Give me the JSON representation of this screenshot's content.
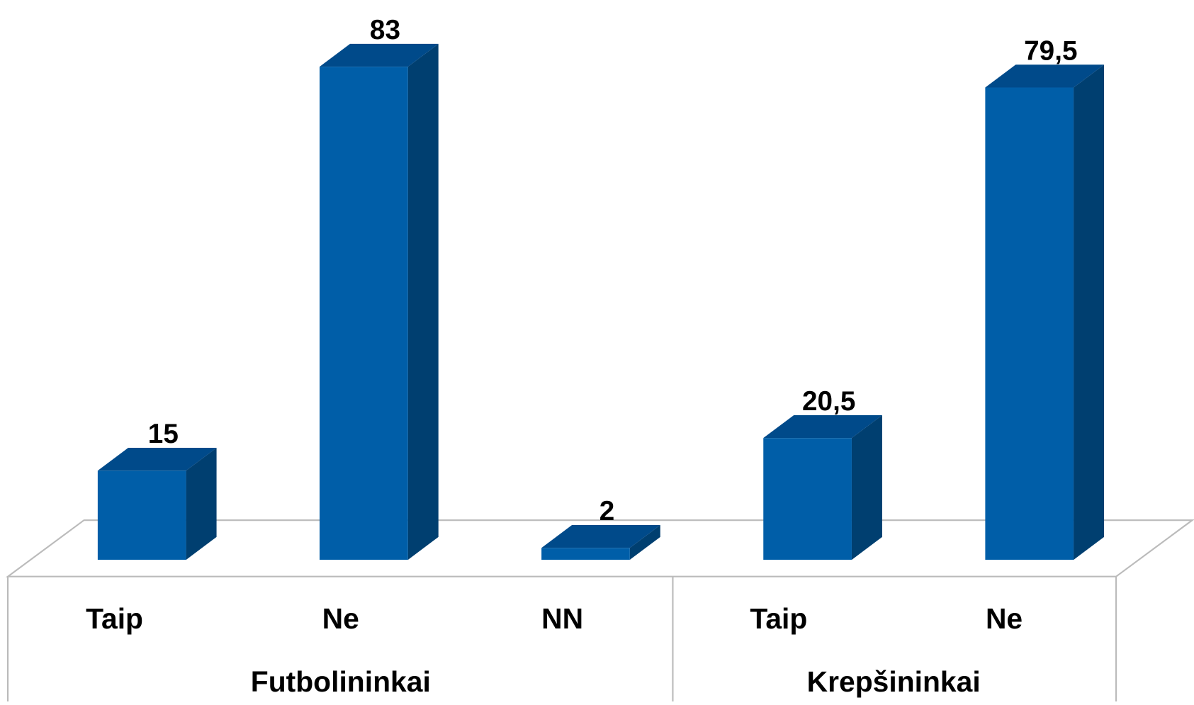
{
  "chart_data": {
    "type": "bar",
    "color": "#005ea8",
    "groups": [
      {
        "name": "Futbolininkai",
        "categories": [
          "Taip",
          "Ne",
          "NN"
        ],
        "values": [
          15,
          83,
          2
        ],
        "value_labels": [
          "15",
          "83",
          "2"
        ]
      },
      {
        "name": "Krepšininkai",
        "categories": [
          "Taip",
          "Ne"
        ],
        "values": [
          20.5,
          79.5
        ],
        "value_labels": [
          "20,5",
          "79,5"
        ]
      }
    ]
  }
}
